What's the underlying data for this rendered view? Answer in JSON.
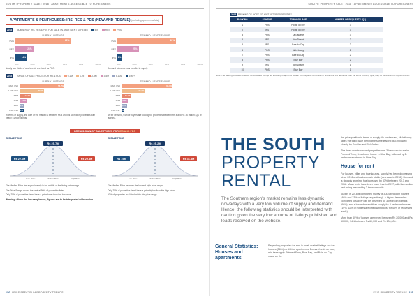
{
  "left_page": {
    "running_head": "SOUTH : PROPERTY SALE : 2018 : APARTMENTS ACCESSIBLE TO FOREIGNERS",
    "section_title": "APARTMENTS & PENTHOUSES: IRS, RES & PDS (NEW AND RESALE)",
    "section_title_note": "(excluding apartments/flats)",
    "legend1": {
      "tag": "2018",
      "text": "NUMBER OF IRS, RES & PDS FOR SALE (IN APARTMENT SCHEME)",
      "items": [
        "IRS",
        "RES",
        "PDS"
      ]
    },
    "chart1_left": {
      "title": "SUPPLY - LISTINGS",
      "axis": [
        "0%",
        "20%",
        "40%",
        "60%",
        "80%",
        "100%"
      ],
      "note": "Nearly two thirds of apartments are listed as PDS."
    },
    "chart1_right": {
      "title": "DEMAND - LEADS/EMAILS",
      "axis": [
        "0%",
        "20%",
        "40%",
        "60%",
        "80%",
        "100%"
      ],
      "note": "Demand follows a near parallel to supply."
    },
    "legend2": {
      "tag": "2018",
      "text": "RANGE OF SALE PRICES FOR IRS & PDS",
      "items": [
        "0-1M",
        "1-2M",
        "2-3M",
        "3-5M",
        "5-10M",
        "10M+"
      ]
    },
    "chart2_left": {
      "title": "SUPPLY - LISTINGS",
      "note": "In terms of supply, the core of the market is between Rs 4 and Rs 45 million properties with nearly 51% of listings."
    },
    "chart2_right": {
      "title": "DEMAND - LEADS/EMAILS",
      "note": "As for demand, 64% of buyers are looking for properties between Rs 4 and Rs 16 million (Q1 of listings)."
    },
    "banner": {
      "text": "BREAKDOWN OF SALE PRICES FOR",
      "highlight": "IRS AND PDS"
    },
    "bell_left": {
      "title": "RESALE PRICE",
      "median": "Rs 25.7M",
      "low": "Rs 22.6M",
      "high": "Rs 29.8M",
      "labels": [
        "Low Price",
        "Median Price",
        "High Price"
      ]
    },
    "bell_right": {
      "title": "RESALE PRICE",
      "median": "Rs 25.2M",
      "low": "Rs 19M",
      "high": "Rs 31.8M",
      "labels": [
        "Low Price",
        "Median Price",
        "High Price"
      ]
    },
    "bell_notes_left": [
      "The Median Price lies approximately in the middle of the listing price range.",
      "The Price Range covers the central 50% of properties listed.",
      "Only 25% of properties listed have a price lower than the low price."
    ],
    "bell_notes_right": [
      "The Median Price between the low and high price range.",
      "Only 25% of properties listed have a price higher than the high price.",
      "50% of properties are listed within this price range."
    ],
    "warning": "Warning: Given the low sample size, figures are to be interpreted with caution",
    "footer_page": "150",
    "footer_text": "LEXIS SPECTRUM PROPERTY TRENDS"
  },
  "chart_data": [
    {
      "type": "bar",
      "title": "SUPPLY - LISTINGS",
      "categories": [
        "PDS",
        "RES",
        "IRS"
      ],
      "values": [
        65,
        21,
        14
      ],
      "unit": "%"
    },
    {
      "type": "bar",
      "title": "DEMAND - LEADS/EMAILS",
      "categories": [
        "PDS",
        "RES",
        "IRS"
      ],
      "values": [
        69,
        25,
        6
      ],
      "unit": "%"
    },
    {
      "type": "bar",
      "title": "SUPPLY - LISTINGS",
      "categories": [
        "10M+ USD",
        "5-10M USD",
        "3-5M",
        "2-3M",
        "1-2M",
        "0-1M USD"
      ],
      "values": [
        55.2,
        30.5,
        14.2,
        8.8,
        5.1,
        5.1
      ],
      "unit": "%"
    },
    {
      "type": "bar",
      "title": "DEMAND - LEADS/EMAILS",
      "categories": [
        "10M+ USD",
        "5-10M USD",
        "3-5M",
        "2-3M",
        "1-2M",
        "0-1M USD"
      ],
      "values": [
        63.1,
        28.7,
        11.8,
        7.4,
        6.6,
        3.5
      ],
      "unit": "%"
    }
  ],
  "right_page": {
    "running_head": "SOUTH : PROPERTY SALE : 2018 : APARTMENTS ACCESSIBLE TO FOREIGNERS",
    "table_tag": "2018",
    "table_caption": "RANKING OF MOST SOUGHT AFTER PROPERTIES",
    "table_headers": [
      "RANKING",
      "SCHEME",
      "TOWN/VILLAGE",
      "NUMBER OF REQUESTS (Q1)"
    ],
    "table_rows": [
      [
        "1",
        "PDS",
        "Pointe d'Esny",
        "3"
      ],
      [
        "2",
        "IRS",
        "Pointe d'Esny",
        "3"
      ],
      [
        "3",
        "PDS",
        "La Gaulette",
        "3"
      ],
      [
        "4",
        "IRS",
        "Mon Désert",
        "2"
      ],
      [
        "5",
        "IRS",
        "Baie du Cap",
        "2"
      ],
      [
        "6",
        "PDS",
        "Mahébourg",
        "2"
      ],
      [
        "7",
        "PDS",
        "Baie du Cap",
        "2"
      ],
      [
        "8",
        "PDS",
        "Blue Bay",
        "2"
      ],
      [
        "9",
        "IRS",
        "Mon Désert",
        "1"
      ],
      [
        "10",
        "PDS",
        "Blue Bay",
        "1"
      ]
    ],
    "table_note": "Note: The ranking is based on leads received and listings not including Imagin Lux Estate. Corresponds to number of properties and demands from the same property type, may be more than the top ten entries.",
    "headline1": "THE SOUTH",
    "headline2": "PROPERTY",
    "headline3": "RENTAL",
    "intro": "The Southern region's market remains less dynamic nowadays with a very low volume of supply and demand. Hence, the following statistics should be interpreted with caution given the very low volume of listings published and leads received on the website.",
    "gs_title": "General Statistics: Houses and apartments",
    "gs_body": "Regarding properties for rent in small-market listings are for houses (56%) vs 44% of apartments. Demand rests on two, mid-tier supply. Pointe d'Esny, Blue Bay, and Baie du Cap make up the",
    "col_p1": "the price position in terms of supply. As for demand, Mahébourg takes the third place behind the same leading duo, followed closely by Souillac and Bel Ombre.",
    "col_p2": "The three most searched properties are: 3-bedroom house in Pointe d'Esny, 3-bedroom house in Blue Bay, followed by 2-bedroom apartment in Blue Bay.",
    "col_h": "House for rent",
    "col_p3": "For houses, villas and townhouses, supply has been decreasing since 2016 and leads remain stable (decrease in 2018). Demand is strongly growing, has increased by 33% between 2017 and 2018. Mean rents have been lower than in 2017, with the median rent being reached by 2-bedroom units.",
    "col_p4": "Supply in 2018 is composed mainly of 3 & 4-bedroom houses (46% and 33% of listings respectively). A higher demand as compared to supply can be observed for 3-bedroom formats (66%), and a lower demand than supply for 4-bedroom houses (19%, 62% of houses are listed with pools, for 45% of requested leads).",
    "col_p5": "More than 60% of houses are rented between Rs 20,000 and Rs 60,000, 14% between Rs 60,000 and Rs 100,000.",
    "footer_page": "151",
    "footer_text": "LEXIS PROPERTY TRENDS"
  },
  "colors": {
    "pds": "#f4a07f",
    "res": "#d792b8",
    "irs": "#1e4f7e",
    "navy": "#1a4e80",
    "red": "#d04a3a"
  }
}
